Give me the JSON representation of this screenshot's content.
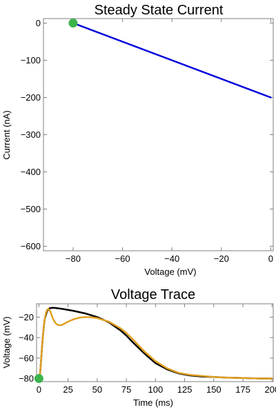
{
  "chart_data": [
    {
      "type": "line",
      "title": "Steady State Current",
      "xlabel": "Voltage (mV)",
      "ylabel": "Current (nA)",
      "xlim": [
        -92,
        1
      ],
      "ylim": [
        -612,
        12
      ],
      "xticks": [
        -80,
        -60,
        -40,
        -20,
        0
      ],
      "yticks": [
        0,
        -100,
        -200,
        -300,
        -400,
        -500,
        -600
      ],
      "colors": {
        "line": "#0000dd",
        "marker": "#3cb44b"
      },
      "series": [
        {
          "x": [
            -80,
            0
          ],
          "y": [
            0,
            -200
          ]
        }
      ],
      "marker": {
        "x": -80,
        "y": 0
      }
    },
    {
      "type": "line",
      "title": "Voltage Trace",
      "xlabel": "Time (ms)",
      "ylabel": "Voltage (mV)",
      "xlim": [
        -2,
        201
      ],
      "ylim": [
        -83,
        -7
      ],
      "xticks": [
        0,
        25,
        50,
        75,
        100,
        125,
        150,
        175,
        200
      ],
      "yticks": [
        -20,
        -40,
        -60,
        -80
      ],
      "colors": {
        "trace1": "#000000",
        "trace2": "#e0a020",
        "marker": "#3cb44b"
      },
      "series": [
        {
          "x": [
            0,
            1,
            2,
            3,
            4,
            5,
            7,
            9,
            11,
            13,
            15,
            20,
            25,
            30,
            40,
            50,
            60,
            70,
            75,
            80,
            90,
            100,
            110,
            120,
            130,
            140,
            150,
            160,
            175,
            190,
            200
          ],
          "y": [
            -80,
            -75,
            -60,
            -45,
            -32,
            -22,
            -14,
            -11.5,
            -11,
            -11,
            -11.2,
            -12,
            -13,
            -14,
            -16.5,
            -20,
            -25,
            -33,
            -38,
            -44,
            -55,
            -65,
            -71,
            -75,
            -77,
            -78,
            -78.5,
            -79,
            -79.5,
            -80,
            -80
          ]
        },
        {
          "x": [
            0,
            1,
            2,
            3,
            4,
            5,
            6,
            7,
            8,
            9,
            10,
            11,
            12,
            14,
            16,
            18,
            20,
            25,
            30,
            35,
            40,
            45,
            50,
            60,
            70,
            75,
            80,
            90,
            100,
            110,
            120,
            130,
            140,
            150,
            160,
            175,
            190,
            200
          ],
          "y": [
            -80,
            -75,
            -60,
            -45,
            -32,
            -22,
            -16,
            -13,
            -12,
            -13,
            -15,
            -18.5,
            -21.5,
            -25.5,
            -27.5,
            -28,
            -27.5,
            -24.5,
            -22,
            -20.5,
            -20,
            -20.2,
            -21,
            -24.5,
            -31,
            -35.5,
            -41,
            -53,
            -63,
            -70,
            -74.5,
            -76.5,
            -77.5,
            -78.5,
            -79,
            -79.5,
            -80,
            -80
          ]
        }
      ],
      "marker": {
        "x": 0,
        "y": -80
      }
    }
  ]
}
